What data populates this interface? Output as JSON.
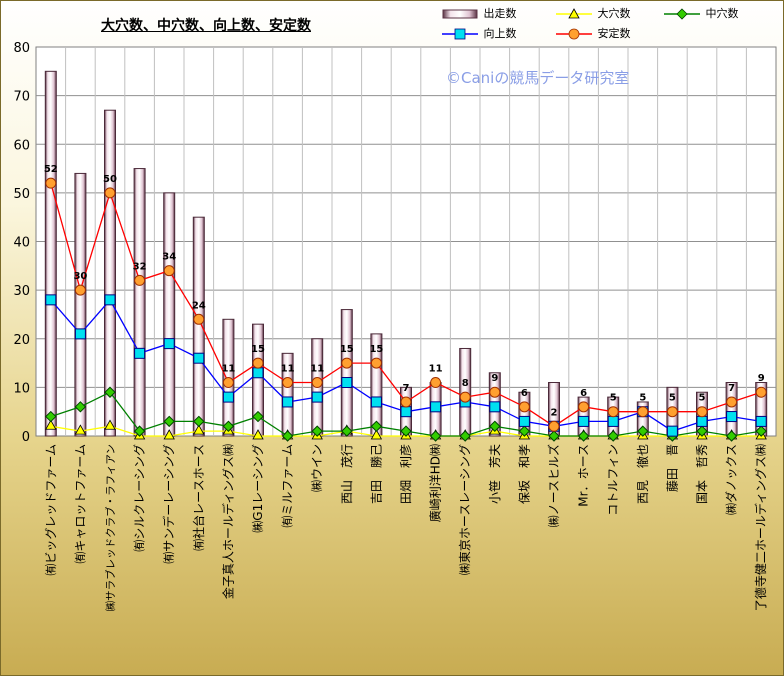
{
  "chart_data": {
    "type": "bar",
    "title": "大穴数、中穴数、向上数、安定数",
    "watermark": "©Caniの競馬データ研究室",
    "ylim": [
      0,
      80
    ],
    "yticks": [
      0,
      10,
      20,
      30,
      40,
      50,
      60,
      70,
      80
    ],
    "grid": true,
    "legend_position": "top-right",
    "categories": [
      "㈲ビッグレッドファーム",
      "㈲キャロットファーム",
      "㈱サラブレッドクラブ・ラフィアン",
      "㈲シルクレーシング",
      "㈲サンデーレーシング",
      "㈲社台レースホース",
      "金子真人ホールディングス㈱",
      "㈱G1レーシング",
      "㈲ミルファーム",
      "㈱ウイン",
      "西山　茂行",
      "吉田　勝己",
      "田畑　利彦",
      "廣崎利洋HD㈱",
      "㈱東京ホースレーシング",
      "小笹　芳夫",
      "保坂　和孝",
      "㈱ノースヒルズ",
      "Mr．ホース",
      "コトルフィン",
      "西見　徹也",
      "藤田　晋",
      "国本　哲秀",
      "㈱ダノックス",
      "了德寺健二ホールディングス㈱"
    ],
    "series": [
      {
        "name": "出走数",
        "type": "bar",
        "color": "#e8d0dc",
        "values": [
          75,
          54,
          67,
          55,
          50,
          45,
          24,
          23,
          17,
          20,
          26,
          21,
          10,
          11,
          18,
          13,
          9,
          11,
          8,
          8,
          7,
          10,
          9,
          11,
          11
        ]
      },
      {
        "name": "大穴数",
        "type": "line",
        "color": "#ffff00",
        "values": [
          2,
          1,
          2,
          0,
          0,
          1,
          1,
          0,
          0,
          0,
          1,
          0,
          0,
          0,
          0,
          1,
          0,
          0,
          0,
          0,
          0,
          0,
          0,
          0,
          0
        ]
      },
      {
        "name": "中穴数",
        "type": "line",
        "color": "#00b000",
        "values": [
          4,
          6,
          9,
          1,
          3,
          3,
          2,
          4,
          0,
          1,
          1,
          2,
          1,
          0,
          0,
          2,
          1,
          0,
          0,
          0,
          1,
          0,
          1,
          0,
          1
        ]
      },
      {
        "name": "向上数",
        "type": "line",
        "color": "#0000ff",
        "values": [
          28,
          21,
          28,
          17,
          19,
          16,
          8,
          13,
          7,
          8,
          11,
          7,
          5,
          6,
          7,
          6,
          3,
          2,
          3,
          3,
          5,
          1,
          3,
          4,
          3
        ]
      },
      {
        "name": "安定数",
        "type": "line",
        "color": "#ff0000",
        "values": [
          52,
          30,
          50,
          32,
          34,
          24,
          11,
          15,
          11,
          11,
          15,
          15,
          7,
          11,
          8,
          9,
          6,
          2,
          6,
          5,
          5,
          5,
          5,
          7,
          9
        ]
      }
    ],
    "data_labels": [
      "52",
      "30",
      "50",
      "32",
      "34",
      "24",
      "11",
      "15",
      "11",
      "11",
      "15",
      "15",
      "7",
      "11",
      "8",
      "9",
      "6",
      "2",
      "6",
      "5",
      "5",
      "5",
      "5",
      "7",
      "9"
    ]
  }
}
